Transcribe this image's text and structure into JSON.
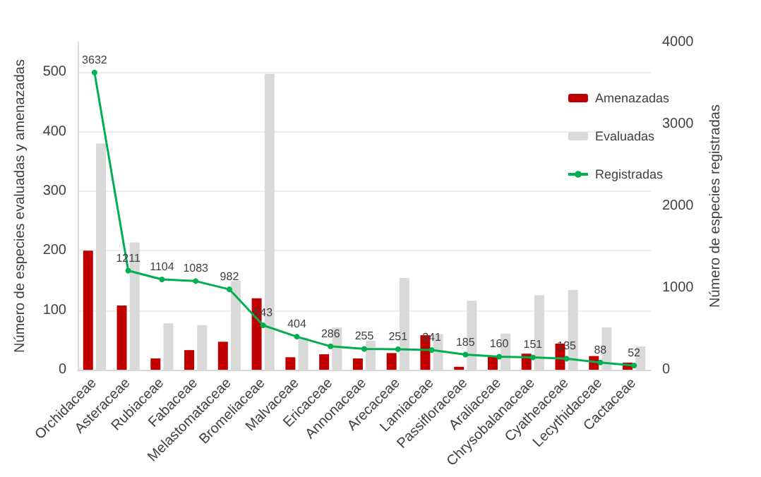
{
  "chart_data": {
    "type": "bar",
    "ylabel": "Número de especies evaluadas y amenazadas",
    "y2label": "Número de especies registradas",
    "categories": [
      "Orchidaceae",
      "Asteraceae",
      "Rubiaceae",
      "Fabaceae",
      "Melastomataceae",
      "Bromeliaceae",
      "Malvaceae",
      "Ericaceae",
      "Annonaceae",
      "Arecaceae",
      "Lamiaceae",
      "Passifloraceae",
      "Araliaceae",
      "Chrysobalanaceae",
      "Cyatheaceae",
      "Lecythidaceae",
      "Cactaceae"
    ],
    "series": [
      {
        "name": "Amenazadas",
        "color": "#c00000",
        "values": [
          200,
          108,
          19,
          33,
          47,
          120,
          21,
          26,
          19,
          28,
          58,
          5,
          22,
          27,
          44,
          23,
          12
        ]
      },
      {
        "name": "Evaluadas",
        "color": "#d9d9d9",
        "values": [
          380,
          214,
          78,
          75,
          149,
          497,
          54,
          71,
          49,
          154,
          60,
          116,
          61,
          125,
          134,
          71,
          39
        ]
      },
      {
        "name": "Registradas",
        "type": "line",
        "axis": "y2",
        "color": "#00b050",
        "marker": "circle",
        "data_labels": true,
        "values": [
          3632,
          1211,
          1104,
          1083,
          982,
          543,
          404,
          286,
          255,
          251,
          241,
          185,
          160,
          151,
          135,
          88,
          52
        ]
      }
    ],
    "ylim": [
      0,
      550
    ],
    "yticks": [
      0,
      100,
      200,
      300,
      400,
      500
    ],
    "y2lim": [
      0,
      4000
    ],
    "y2ticks": [
      0,
      1000,
      2000,
      3000,
      4000
    ],
    "grid": "y",
    "legend": "right"
  }
}
